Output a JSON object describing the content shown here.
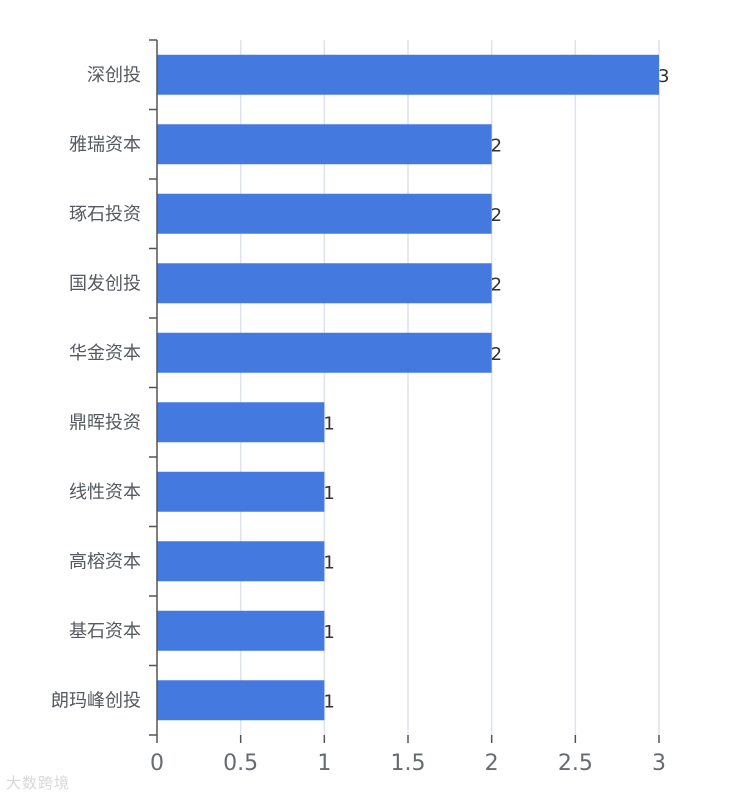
{
  "chart_data": {
    "type": "bar",
    "orientation": "horizontal",
    "categories": [
      "深创投",
      "雅瑞资本",
      "琢石投资",
      "国发创投",
      "华金资本",
      "鼎晖投资",
      "线性资本",
      "高榕资本",
      "基石资本",
      "朗玛峰创投"
    ],
    "values": [
      3,
      2,
      2,
      2,
      2,
      1,
      1,
      1,
      1,
      1
    ],
    "x_ticks": [
      "0",
      "0.5",
      "1",
      "1.5",
      "2",
      "2.5",
      "3"
    ],
    "xlim": [
      0,
      3
    ],
    "grid": true,
    "bar_color": "#447ae0",
    "grid_color": "#dde3ec",
    "axis_color": "#555555",
    "title": "",
    "xlabel": "",
    "ylabel": ""
  },
  "watermark": {
    "text": "大数跨境"
  }
}
